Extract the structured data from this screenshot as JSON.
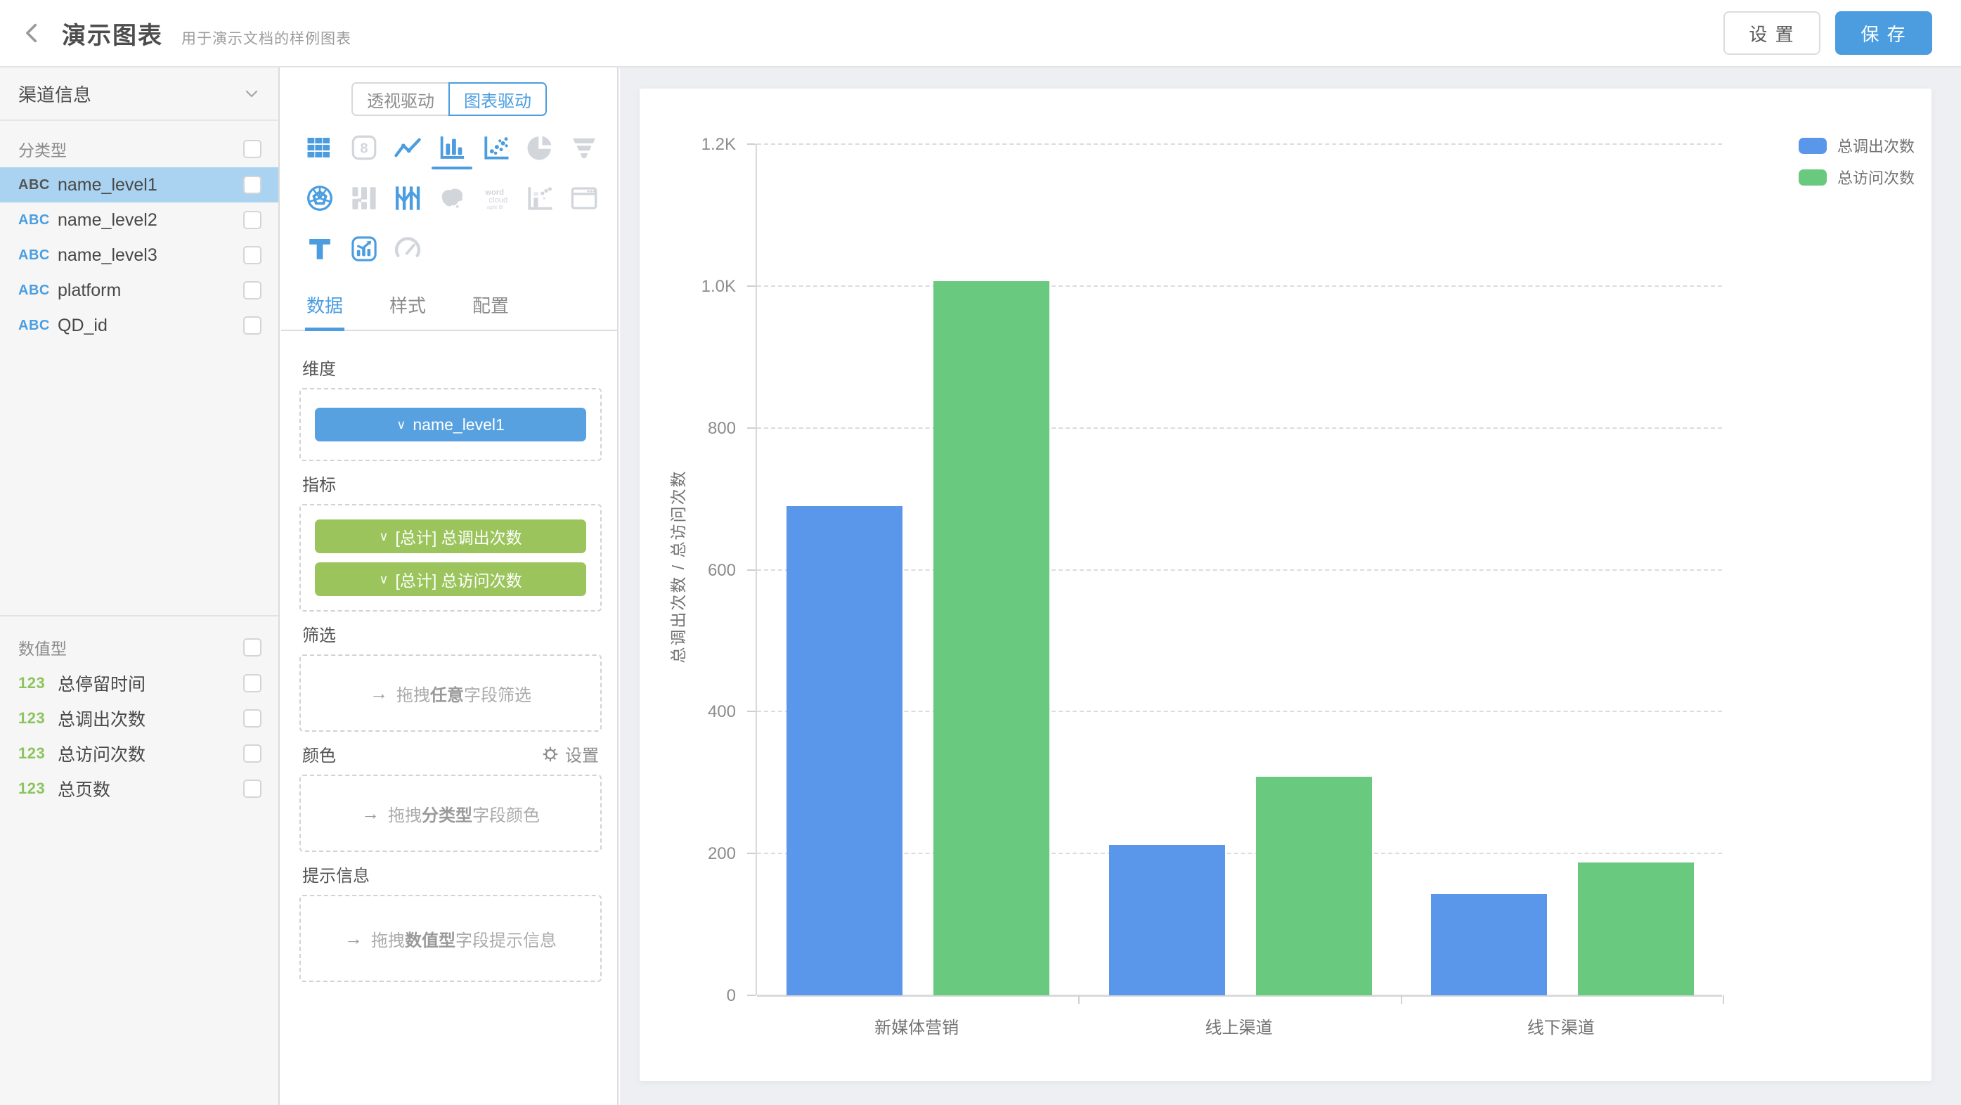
{
  "header": {
    "title": "演示图表",
    "subtitle": "用于演示文档的样例图表",
    "settings_label": "设 置",
    "save_label": "保 存"
  },
  "sidebar": {
    "dataset_label": "渠道信息",
    "category_section_label": "分类型",
    "category_fields": [
      {
        "prefix": "ABC",
        "name": "name_level1",
        "selected": true
      },
      {
        "prefix": "ABC",
        "name": "name_level2",
        "selected": false
      },
      {
        "prefix": "ABC",
        "name": "name_level3",
        "selected": false
      },
      {
        "prefix": "ABC",
        "name": "platform",
        "selected": false
      },
      {
        "prefix": "ABC",
        "name": "QD_id",
        "selected": false
      }
    ],
    "numeric_section_label": "数值型",
    "numeric_fields": [
      {
        "prefix": "123",
        "name": "总停留时间"
      },
      {
        "prefix": "123",
        "name": "总调出次数"
      },
      {
        "prefix": "123",
        "name": "总访问次数"
      },
      {
        "prefix": "123",
        "name": "总页数"
      }
    ]
  },
  "panel": {
    "mode_tabs": [
      {
        "label": "透视驱动",
        "active": false
      },
      {
        "label": "图表驱动",
        "active": true
      }
    ],
    "chart_types": [
      {
        "name": "table",
        "state": "active"
      },
      {
        "name": "number-card",
        "state": "inactive"
      },
      {
        "name": "line-chart",
        "state": "active"
      },
      {
        "name": "bar-chart",
        "state": "selected"
      },
      {
        "name": "scatter-chart",
        "state": "active"
      },
      {
        "name": "pie-chart",
        "state": "inactive"
      },
      {
        "name": "funnel-chart",
        "state": "inactive"
      },
      {
        "name": "radar-chart",
        "state": "active"
      },
      {
        "name": "flow-layout",
        "state": "inactive"
      },
      {
        "name": "parallel-chart",
        "state": "active"
      },
      {
        "name": "map-chart",
        "state": "inactive"
      },
      {
        "name": "word-cloud",
        "state": "inactive"
      },
      {
        "name": "waterfall-chart",
        "state": "inactive"
      },
      {
        "name": "web-frame",
        "state": "inactive"
      },
      {
        "name": "text-card",
        "state": "active"
      },
      {
        "name": "combo-chart",
        "state": "active"
      },
      {
        "name": "gauge-chart",
        "state": "inactive"
      }
    ],
    "tabs": [
      {
        "label": "数据",
        "active": true
      },
      {
        "label": "样式",
        "active": false
      },
      {
        "label": "配置",
        "active": false
      }
    ],
    "dimension": {
      "label": "维度",
      "pills": [
        {
          "chevron": "∨",
          "text": "name_level1",
          "color": "blue"
        }
      ]
    },
    "metric": {
      "label": "指标",
      "pills": [
        {
          "chevron": "∨",
          "text": "[总计] 总调出次数",
          "color": "green"
        },
        {
          "chevron": "∨",
          "text": "[总计] 总访问次数",
          "color": "green"
        }
      ]
    },
    "filter": {
      "label": "筛选",
      "arrow": "→",
      "hint": [
        "拖拽",
        "任意",
        "字段筛选"
      ]
    },
    "color": {
      "label": "颜色",
      "settings_label": "设置",
      "arrow": "→",
      "hint": [
        "拖拽",
        "分类型",
        "字段颜色"
      ]
    },
    "tooltip": {
      "label": "提示信息",
      "arrow": "→",
      "hint": [
        "拖拽",
        "数值型",
        "字段提示信息"
      ]
    }
  },
  "chart_data": {
    "type": "bar",
    "title": "",
    "categories": [
      "新媒体营销",
      "线上渠道",
      "线下渠道"
    ],
    "series": [
      {
        "name": "总调出次数",
        "color": "#5A96EA",
        "values": [
          690,
          212,
          143
        ]
      },
      {
        "name": "总访问次数",
        "color": "#68C97F",
        "values": [
          1007,
          308,
          187
        ]
      }
    ],
    "xlabel": "",
    "ylabel": "总调出次数 / 总访问次数",
    "ylim": [
      0,
      1200
    ],
    "yticks": [
      {
        "value": 0,
        "label": "0"
      },
      {
        "value": 200,
        "label": "200"
      },
      {
        "value": 400,
        "label": "400"
      },
      {
        "value": 600,
        "label": "600"
      },
      {
        "value": 800,
        "label": "800"
      },
      {
        "value": 1000,
        "label": "1.0K"
      },
      {
        "value": 1200,
        "label": "1.2K"
      }
    ],
    "legend_position": "top-right",
    "grid": "horizontal-dashed"
  },
  "colors": {
    "accent": "#4B9DE0",
    "bar_blue": "#5A96EA",
    "bar_green": "#68C97F",
    "pill_blue": "#57A1E1",
    "pill_green": "#9BC55C",
    "selected_row_bg": "#A9D3F1",
    "abc_prefix": "#4A9EE0",
    "numeric_prefix": "#8CC45C"
  }
}
